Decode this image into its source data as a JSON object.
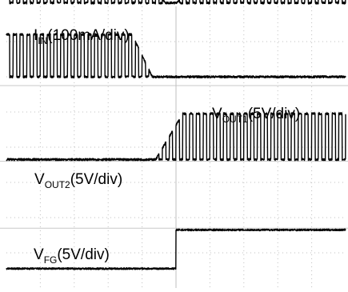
{
  "chart_data": {
    "type": "line",
    "title": "",
    "grid": true,
    "grid_divisions": {
      "x": 10,
      "y": 8
    },
    "time_divisions": [
      0,
      10
    ],
    "series": [
      {
        "name": "IIN",
        "label_main": "I",
        "label_sub": "IN",
        "label_scale": "(100mA/div)",
        "kind": "pwm_fade_out_in",
        "baseline_div": 4.1,
        "amplitude_div": [
          0.45,
          0.65
        ],
        "envelope": [
          [
            0,
            0.75
          ],
          [
            0.5,
            0.82
          ],
          [
            3.0,
            1.0
          ],
          [
            4.2,
            0.95
          ],
          [
            4.5,
            0.3
          ],
          [
            4.7,
            0.0
          ],
          [
            5.0,
            0.0
          ],
          [
            5.3,
            0.4
          ],
          [
            6.0,
            0.8
          ],
          [
            8.0,
            1.0
          ],
          [
            10.0,
            1.0
          ]
        ],
        "periods_div": 0.2
      },
      {
        "name": "VOUT1",
        "label_main": "V",
        "label_sub": "OUT1",
        "label_scale": "(5V/div)",
        "kind": "pwm_ramp_down",
        "baseline_div": 2.0,
        "amplitude_div": 1.2,
        "fade_start_div": 3.7,
        "fade_end_div": 4.3,
        "periods_div": 0.2
      },
      {
        "name": "VOUT2",
        "label_main": "V",
        "label_sub": "OUT2",
        "label_scale": "(5V/div)",
        "kind": "pwm_ramp_up",
        "baseline_div": -0.35,
        "amplitude_div": 1.3,
        "fade_start_div": 4.4,
        "fade_end_div": 5.2,
        "periods_div": 0.2
      },
      {
        "name": "VFG",
        "label_main": "V",
        "label_sub": "FG",
        "label_scale": "(5V/div)",
        "kind": "step",
        "low_div": -3.45,
        "high_div": -2.35,
        "step_at_div": 5.0
      }
    ]
  },
  "colors": {
    "trace": "#000000",
    "grid": "#bfbfbf",
    "background": "#ffffff"
  }
}
